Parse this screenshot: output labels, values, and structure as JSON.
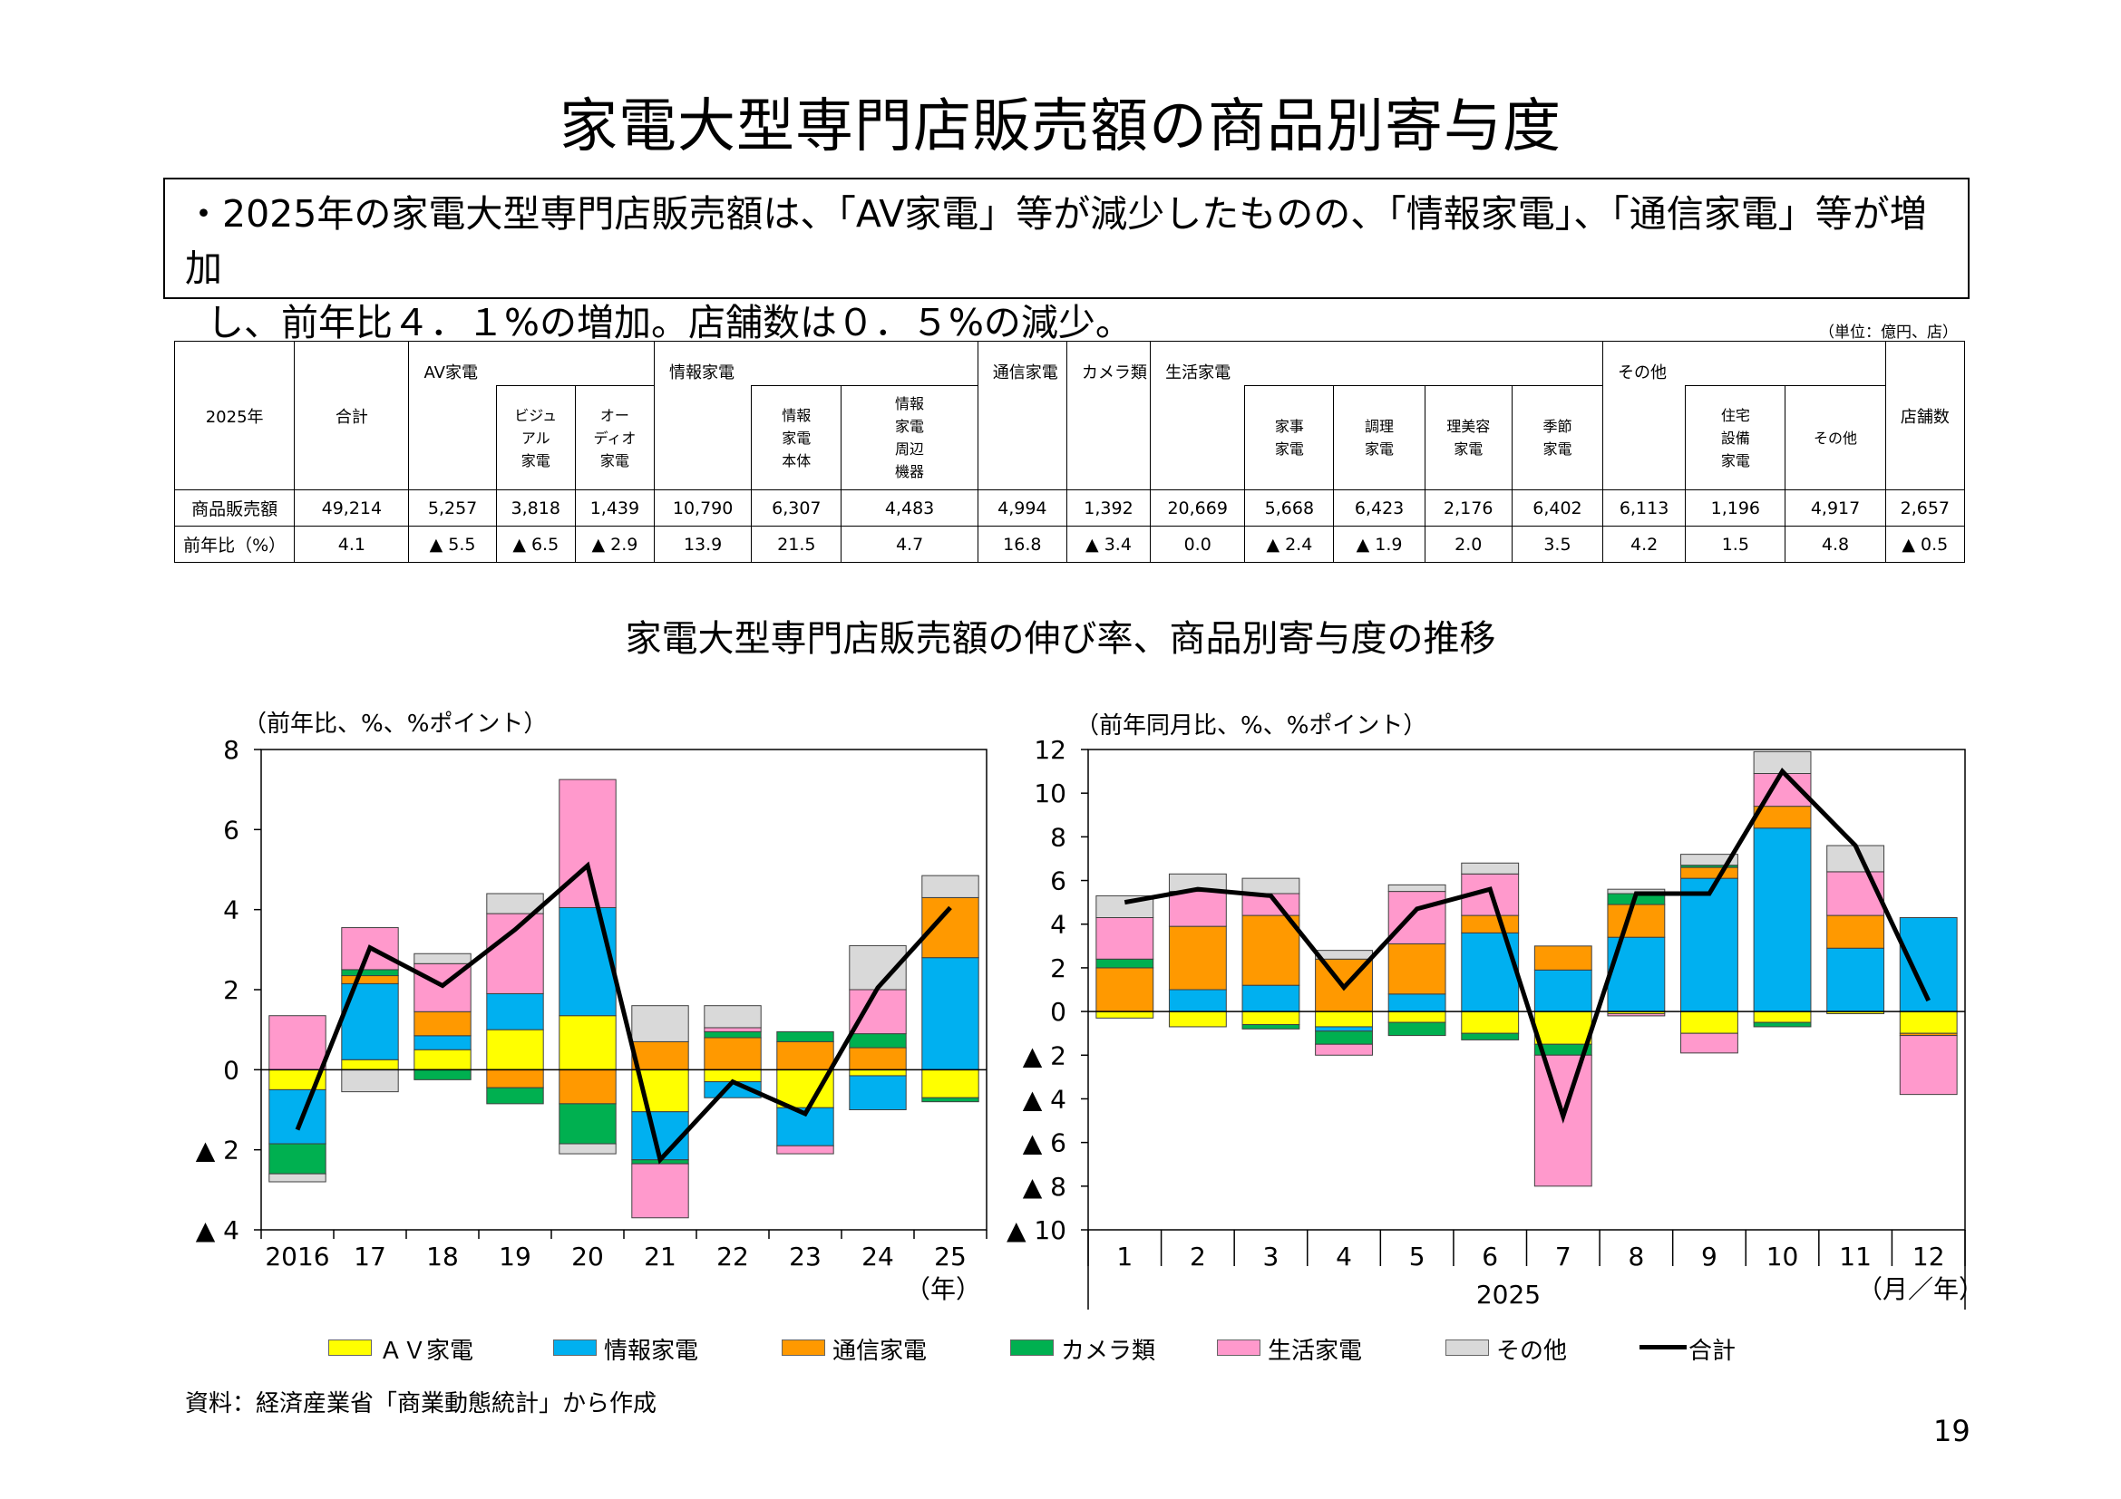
{
  "title": "家電大型専門店販売額の商品別寄与度",
  "summary": {
    "line1": "・2025年の家電大型専門店販売額は、「AV家電」等が減少したものの、「情報家電」、「通信家電」等が増加",
    "line2": "し、前年比４．１%の増加。店舗数は０．５%の減少。"
  },
  "table": {
    "unit": "（単位：億円、店）",
    "year_label": "2025年",
    "headers": {
      "total": "合計",
      "av": "AV家電",
      "av_visual": "ビジュ\nアル\n家電",
      "av_audio": "オー\nディオ\n家電",
      "info": "情報家電",
      "info_body": "情報\n家電\n本体",
      "info_peripheral": "情報\n家電\n周辺\n機器",
      "comm": "通信家電",
      "camera": "カメラ類",
      "life": "生活家電",
      "life_house": "家事\n家電",
      "life_cook": "調理\n家電",
      "life_beauty": "理美容\n家電",
      "life_season": "季節\n家電",
      "other": "その他",
      "other_housing": "住宅\n設備\n家電",
      "other_other": "その他",
      "stores": "店舗数"
    },
    "rows": [
      {
        "label": "商品販売額",
        "values": [
          "49,214",
          "5,257",
          "3,818",
          "1,439",
          "10,790",
          "6,307",
          "4,483",
          "4,994",
          "1,392",
          "20,669",
          "5,668",
          "6,423",
          "2,176",
          "6,402",
          "6,113",
          "1,196",
          "4,917",
          "2,657"
        ]
      },
      {
        "label": "前年比（%）",
        "values": [
          "4.1",
          "▲ 5.5",
          "▲ 6.5",
          "▲ 2.9",
          "13.9",
          "21.5",
          "4.7",
          "16.8",
          "▲ 3.4",
          "0.0",
          "▲ 2.4",
          "▲ 1.9",
          "2.0",
          "3.5",
          "4.2",
          "1.5",
          "4.8",
          "▲ 0.5"
        ]
      }
    ]
  },
  "chart_section_title": "家電大型専門店販売額の伸び率、商品別寄与度の推移",
  "colors": {
    "av": "#FFFF00",
    "info": "#00B0F0",
    "comm": "#FF9900",
    "camera": "#00B050",
    "life": "#FF99CC",
    "other": "#D9D9D9",
    "total": "#000000"
  },
  "legend": [
    "ＡＶ家電",
    "情報家電",
    "通信家電",
    "カメラ類",
    "生活家電",
    "その他",
    "合計"
  ],
  "chart_data": [
    {
      "type": "bar",
      "stacked": true,
      "unit_label": "（前年比、%、%ポイント）",
      "categories": [
        "2016",
        "17",
        "18",
        "19",
        "20",
        "21",
        "22",
        "23",
        "24",
        "25"
      ],
      "x_unit": "（年）",
      "ylim": [
        -4,
        8
      ],
      "yticks": [
        8,
        6,
        4,
        2,
        0,
        -2,
        -4
      ],
      "ytick_labels": [
        "8",
        "6",
        "4",
        "2",
        "0",
        "▲ 2",
        "▲ 4"
      ],
      "series": [
        {
          "name": "AV家電",
          "key": "av",
          "values": [
            -0.5,
            0.25,
            0.5,
            1.0,
            1.35,
            -1.05,
            -0.3,
            -0.95,
            -0.15,
            -0.7
          ]
        },
        {
          "name": "情報家電",
          "key": "info",
          "values": [
            -1.35,
            1.9,
            0.35,
            0.9,
            2.7,
            -1.2,
            -0.4,
            -0.95,
            -0.85,
            2.8
          ]
        },
        {
          "name": "通信家電",
          "key": "comm",
          "values": [
            0.0,
            0.2,
            0.6,
            -0.45,
            -0.85,
            0.7,
            0.8,
            0.7,
            0.55,
            1.5
          ]
        },
        {
          "name": "カメラ類",
          "key": "camera",
          "values": [
            -0.75,
            0.15,
            -0.25,
            -0.4,
            -1.0,
            -0.1,
            0.15,
            0.25,
            0.35,
            -0.1
          ]
        },
        {
          "name": "生活家電",
          "key": "life",
          "values": [
            1.35,
            1.05,
            1.2,
            2.0,
            3.2,
            -1.35,
            0.1,
            -0.2,
            1.1,
            0.0
          ]
        },
        {
          "name": "その他",
          "key": "other",
          "values": [
            -0.2,
            -0.55,
            0.25,
            0.5,
            -0.25,
            0.9,
            0.55,
            0.0,
            1.1,
            0.55
          ]
        },
        {
          "name": "合計",
          "key": "total",
          "type": "line",
          "values": [
            -1.5,
            3.05,
            2.1,
            3.5,
            5.1,
            -2.25,
            -0.3,
            -1.1,
            2.05,
            4.05
          ]
        }
      ]
    },
    {
      "type": "bar",
      "stacked": true,
      "unit_label": "（前年同月比、%、%ポイント）",
      "categories": [
        "1",
        "2",
        "3",
        "4",
        "5",
        "6",
        "7",
        "8",
        "9",
        "10",
        "11",
        "12"
      ],
      "x_group_label": "2025",
      "x_unit": "（月／年）",
      "ylim": [
        -10,
        12
      ],
      "yticks": [
        12,
        10,
        8,
        6,
        4,
        2,
        0,
        -2,
        -4,
        -6,
        -8,
        -10
      ],
      "ytick_labels": [
        "12",
        "10",
        "8",
        "6",
        "4",
        "2",
        "0",
        "▲ 2",
        "▲ 4",
        "▲ 6",
        "▲ 8",
        "▲ 10"
      ],
      "series": [
        {
          "name": "AV家電",
          "key": "av",
          "values": [
            -0.3,
            -0.7,
            -0.6,
            -0.7,
            -0.5,
            -1.0,
            -1.5,
            -0.1,
            -1.0,
            -0.5,
            -0.1,
            -1.0
          ]
        },
        {
          "name": "情報家電",
          "key": "info",
          "values": [
            0.0,
            1.0,
            1.2,
            -0.2,
            0.8,
            3.6,
            1.9,
            3.4,
            6.1,
            8.4,
            2.9,
            4.3
          ]
        },
        {
          "name": "通信家電",
          "key": "comm",
          "values": [
            2.0,
            2.9,
            3.2,
            2.4,
            2.3,
            0.8,
            1.1,
            1.5,
            0.5,
            1.0,
            1.5,
            -0.1
          ]
        },
        {
          "name": "カメラ類",
          "key": "camera",
          "values": [
            0.4,
            0.0,
            -0.2,
            -0.6,
            -0.6,
            -0.3,
            -0.5,
            0.5,
            0.1,
            -0.2,
            0.0,
            0.0
          ]
        },
        {
          "name": "生活家電",
          "key": "life",
          "values": [
            1.9,
            1.6,
            1.0,
            -0.5,
            2.4,
            1.9,
            -6.0,
            -0.1,
            -0.9,
            1.5,
            2.0,
            -2.7
          ]
        },
        {
          "name": "その他",
          "key": "other",
          "values": [
            1.0,
            0.8,
            0.7,
            0.4,
            0.3,
            0.5,
            0.0,
            0.2,
            0.5,
            1.0,
            1.2,
            0.0
          ]
        },
        {
          "name": "合計",
          "key": "total",
          "type": "line",
          "values": [
            5.0,
            5.6,
            5.3,
            1.1,
            4.7,
            5.6,
            -4.8,
            5.4,
            5.4,
            11.0,
            7.6,
            0.5
          ]
        }
      ]
    }
  ],
  "source": "資料：経済産業省「商業動態統計」から作成",
  "page_number": "19"
}
